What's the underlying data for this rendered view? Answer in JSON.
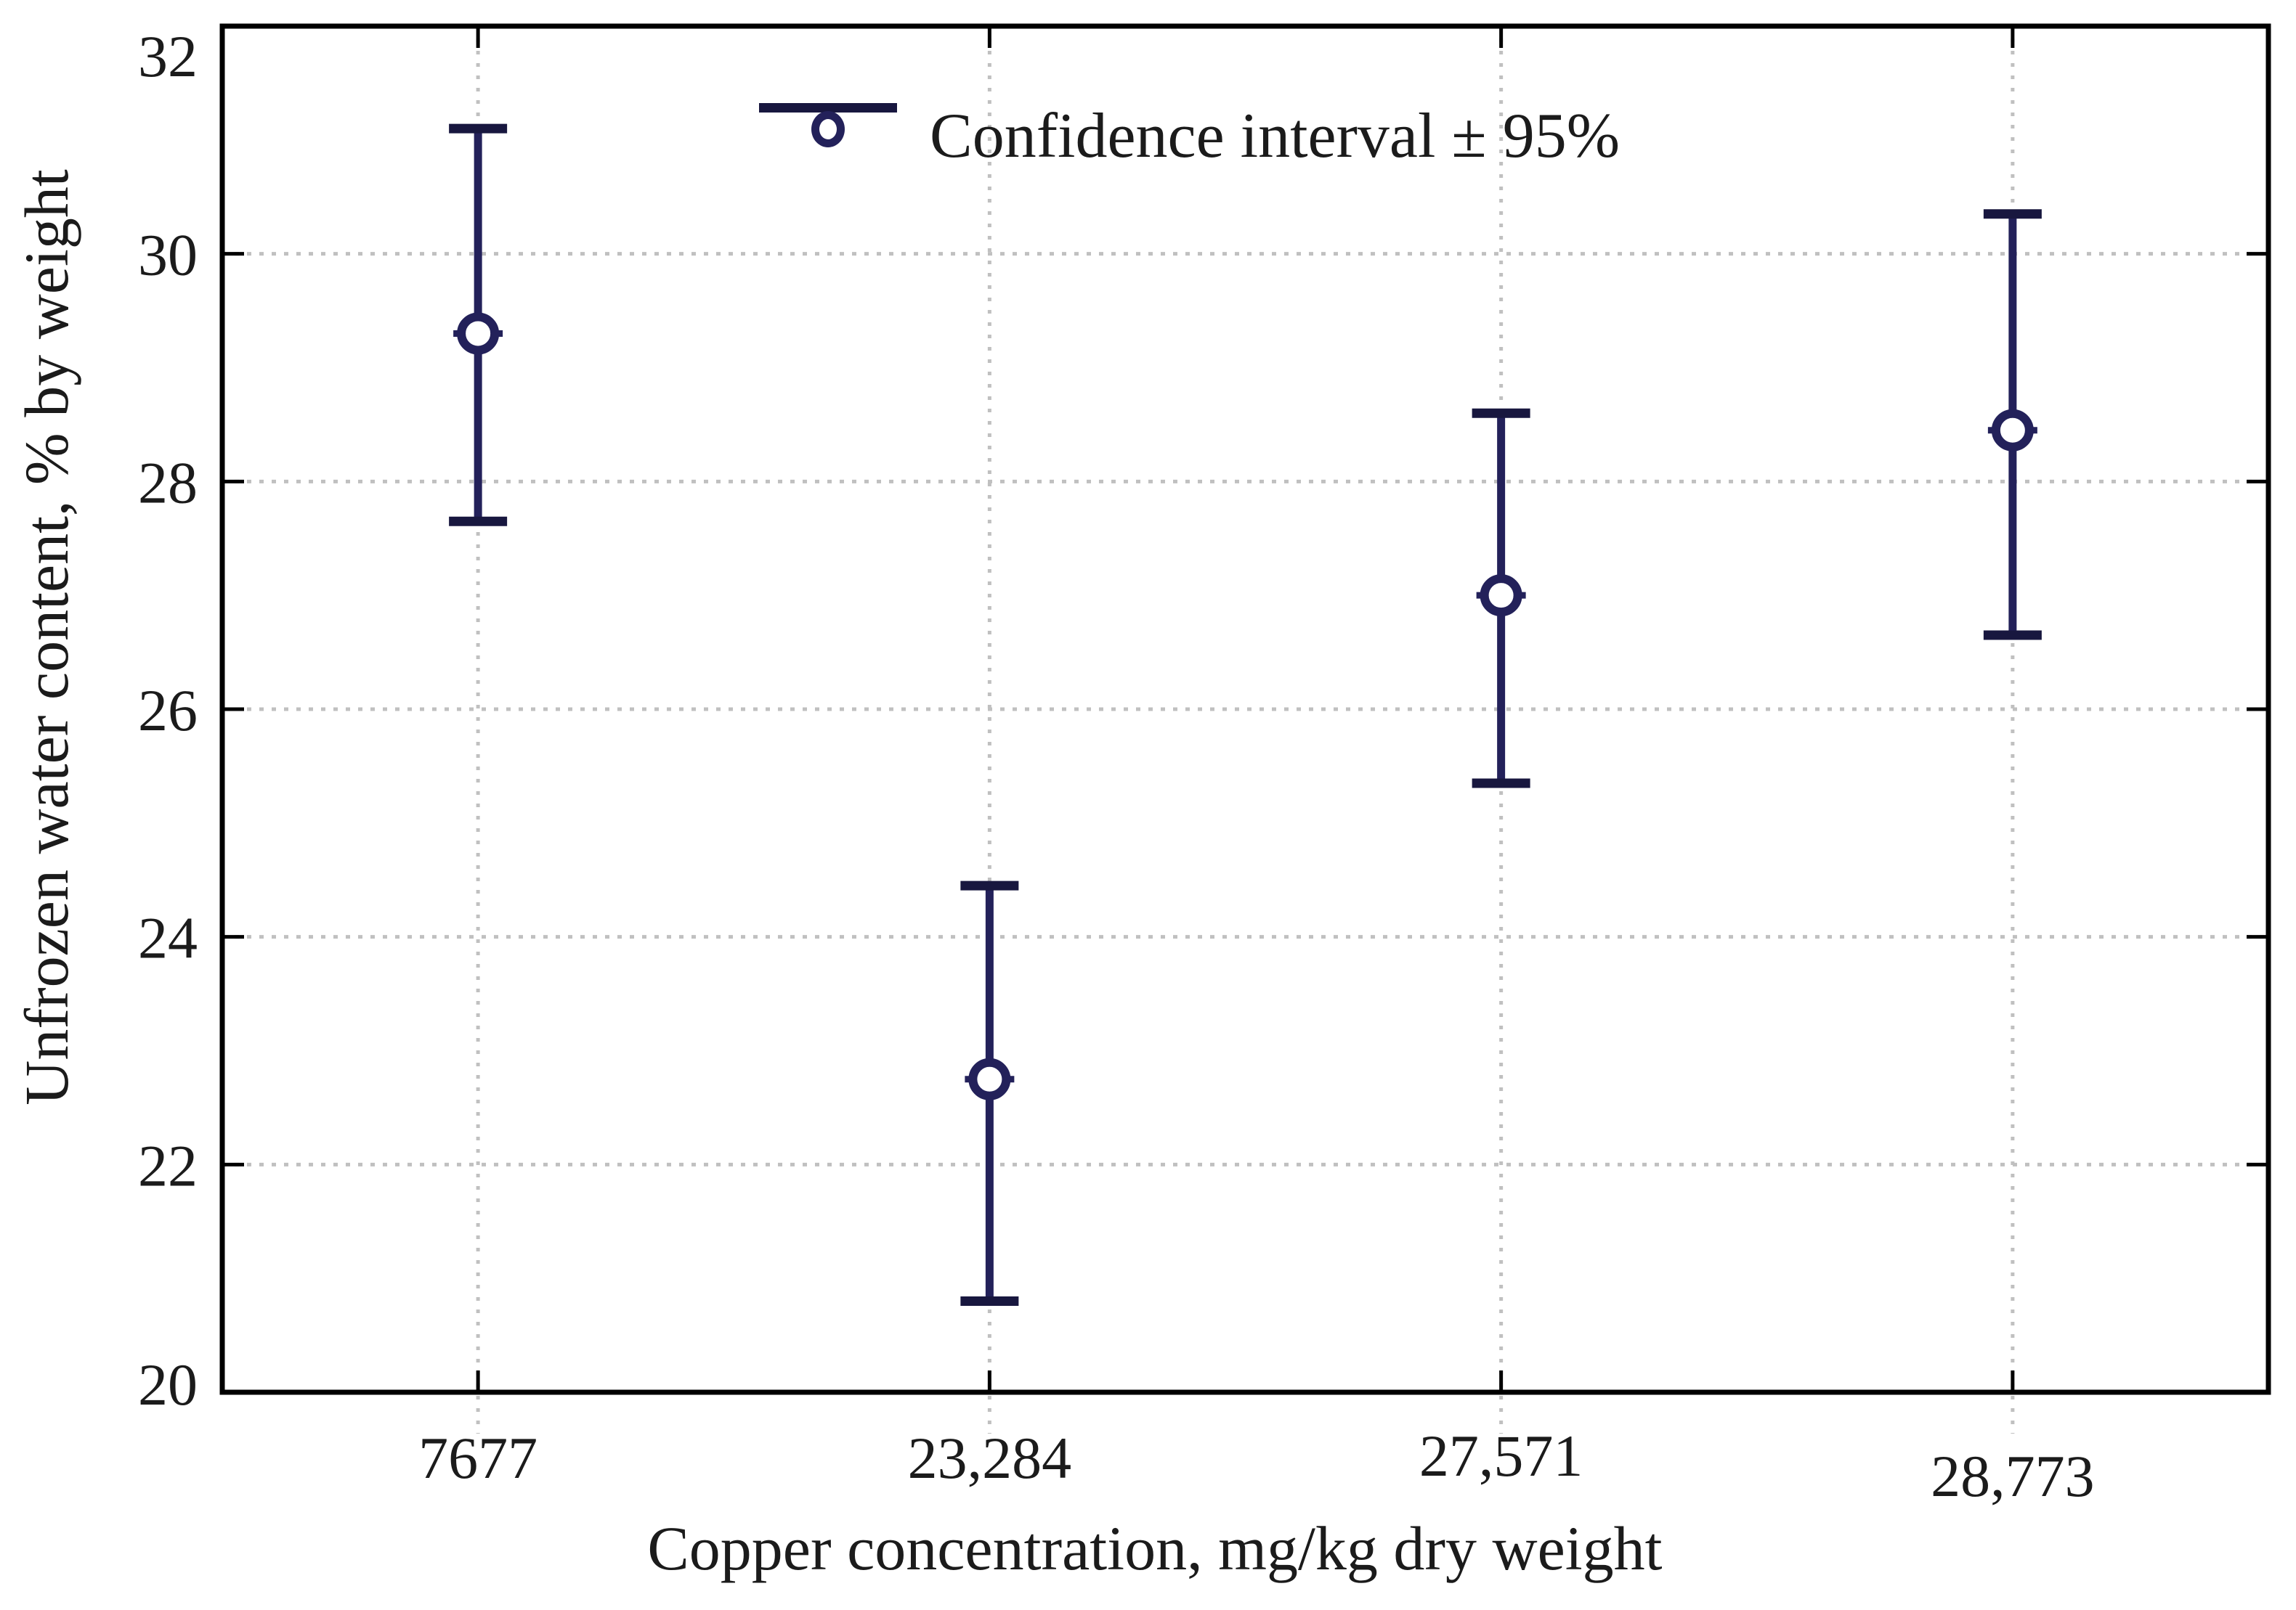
{
  "chart_data": {
    "type": "scatter",
    "title": "",
    "categories": [
      "7677",
      "23,284",
      "27,571",
      "28,773"
    ],
    "series": [
      {
        "name": "Unfrozen water content",
        "values": [
          29.3,
          22.75,
          27.0,
          28.45
        ],
        "ci_low": [
          27.65,
          20.8,
          25.35,
          26.65
        ],
        "ci_high": [
          31.1,
          24.45,
          28.6,
          30.35
        ]
      }
    ],
    "xlabel": "Copper concentration, mg/kg dry weight",
    "ylabel": "Unfrozen water content, % by weight",
    "ylim": [
      20,
      32
    ],
    "y_ticks": [
      20,
      22,
      24,
      26,
      28,
      30,
      32
    ],
    "legend": "Confidence interval ± 95%",
    "legend_position": "top-center-inside",
    "grid": "dotted",
    "colors": {
      "marker": "#23215a",
      "cap": "#18173f",
      "grid": "#c0c0c0",
      "axis": "#000000",
      "text": "#1b1b1b"
    }
  }
}
